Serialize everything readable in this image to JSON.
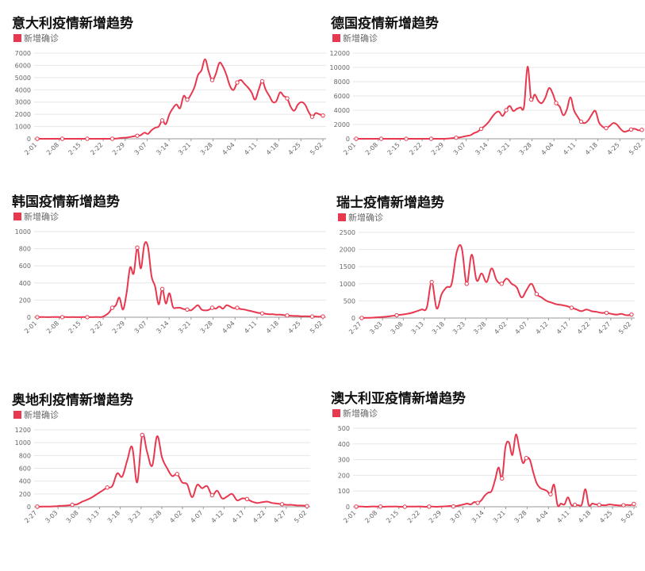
{
  "colors": {
    "line": "#e8384f",
    "grid": "#e6e6e6",
    "tick": "#666666"
  },
  "chart_data": [
    {
      "type": "line",
      "title": "意大利疫情新增趋势",
      "legend": "新增确诊",
      "ylim": [
        0,
        7000
      ],
      "yticks": [
        0,
        1000,
        2000,
        3000,
        4000,
        5000,
        6000,
        7000
      ],
      "xticks": [
        "2-01",
        "2-08",
        "2-15",
        "2-22",
        "2-29",
        "3-07",
        "3-14",
        "3-21",
        "3-28",
        "4-04",
        "4-11",
        "4-18",
        "4-25",
        "5-02"
      ],
      "series": [
        {
          "name": "新增确诊",
          "values": [
            0,
            0,
            0,
            0,
            0,
            0,
            0,
            0,
            0,
            0,
            0,
            0,
            0,
            0,
            0,
            0,
            0,
            0,
            0,
            0,
            0,
            0,
            10,
            50,
            80,
            100,
            150,
            200,
            250,
            300,
            500,
            400,
            700,
            900,
            1000,
            1500,
            1200,
            2000,
            2500,
            2800,
            2500,
            3500,
            3200,
            3600,
            4200,
            5200,
            5600,
            6500,
            5500,
            4800,
            5300,
            6200,
            5900,
            5200,
            4300,
            4000,
            4600,
            4800,
            4500,
            4200,
            3800,
            3200,
            4000,
            4700,
            4000,
            3500,
            3000,
            3100,
            3800,
            3500,
            3300,
            2600,
            2300,
            2800,
            3000,
            2800,
            2200,
            1800,
            2100,
            2000,
            1900
          ]
        }
      ]
    },
    {
      "type": "line",
      "title": "德国疫情新增趋势",
      "legend": "新增确诊",
      "ylim": [
        0,
        12000
      ],
      "yticks": [
        0,
        2000,
        4000,
        6000,
        8000,
        10000,
        12000
      ],
      "xticks": [
        "2-01",
        "2-08",
        "2-15",
        "2-22",
        "2-29",
        "3-07",
        "3-14",
        "3-21",
        "3-28",
        "4-04",
        "4-11",
        "4-18",
        "4-25",
        "5-02"
      ],
      "series": [
        {
          "name": "新增确诊",
          "values": [
            0,
            0,
            0,
            0,
            0,
            0,
            0,
            0,
            0,
            0,
            0,
            0,
            0,
            0,
            0,
            0,
            0,
            0,
            0,
            0,
            0,
            0,
            0,
            0,
            0,
            0,
            50,
            100,
            150,
            200,
            300,
            400,
            500,
            800,
            1000,
            1400,
            1800,
            2300,
            3000,
            3600,
            3800,
            3200,
            4000,
            4600,
            3900,
            4200,
            4400,
            4500,
            10100,
            5500,
            6200,
            5300,
            5000,
            5800,
            7100,
            6400,
            5000,
            4500,
            3300,
            4100,
            5800,
            4000,
            3100,
            2400,
            2200,
            2600,
            3400,
            3900,
            2300,
            1700,
            1500,
            1800,
            2200,
            2000,
            1400,
            1000,
            1100,
            1300,
            1400,
            1200,
            1250
          ]
        }
      ]
    },
    {
      "type": "line",
      "title": "韩国疫情新增趋势",
      "legend": "新增确诊",
      "ylim": [
        0,
        1000
      ],
      "yticks": [
        0,
        200,
        400,
        600,
        800,
        1000
      ],
      "xticks": [
        "2-01",
        "2-08",
        "2-15",
        "2-22",
        "2-29",
        "3-07",
        "3-14",
        "3-21",
        "3-28",
        "4-04",
        "4-11",
        "4-18",
        "4-25",
        "5-02"
      ],
      "series": [
        {
          "name": "新增确诊",
          "values": [
            1,
            3,
            2,
            1,
            2,
            3,
            2,
            1,
            2,
            1,
            2,
            1,
            1,
            2,
            1,
            1,
            2,
            3,
            2,
            20,
            50,
            110,
            140,
            230,
            90,
            280,
            580,
            510,
            813,
            570,
            850,
            820,
            480,
            360,
            150,
            330,
            160,
            280,
            120,
            110,
            110,
            95,
            90,
            80,
            110,
            140,
            90,
            80,
            85,
            110,
            100,
            125,
            100,
            140,
            125,
            105,
            110,
            95,
            90,
            80,
            70,
            60,
            50,
            45,
            40,
            35,
            35,
            30,
            30,
            25,
            20,
            18,
            15,
            15,
            10,
            12,
            10,
            8,
            8,
            6,
            9
          ]
        }
      ]
    },
    {
      "type": "line",
      "title": "瑞士疫情新增趋势",
      "legend": "新增确诊",
      "ylim": [
        0,
        2500
      ],
      "yticks": [
        0,
        500,
        1000,
        1500,
        2000,
        2500
      ],
      "xticks": [
        "2-27",
        "3-03",
        "3-08",
        "3-13",
        "3-18",
        "3-23",
        "3-28",
        "4-02",
        "4-07",
        "4-12",
        "4-17",
        "4-22",
        "4-27",
        "5-02"
      ],
      "series": [
        {
          "name": "新增确诊",
          "values": [
            1,
            5,
            10,
            20,
            30,
            40,
            60,
            80,
            100,
            120,
            150,
            200,
            250,
            300,
            1050,
            280,
            700,
            900,
            1000,
            1920,
            2050,
            1000,
            1850,
            1100,
            1300,
            1050,
            1450,
            1100,
            1000,
            1150,
            1000,
            900,
            600,
            820,
            1000,
            700,
            600,
            500,
            450,
            400,
            380,
            350,
            300,
            250,
            200,
            250,
            200,
            180,
            150,
            150,
            120,
            100,
            120,
            80,
            100
          ]
        }
      ]
    },
    {
      "type": "line",
      "title": "奥地利疫情新增趋势",
      "legend": "新增确诊",
      "ylim": [
        0,
        1200
      ],
      "yticks": [
        0,
        200,
        400,
        600,
        800,
        1000,
        1200
      ],
      "xticks": [
        "2-27",
        "3-03",
        "3-08",
        "3-13",
        "3-18",
        "3-23",
        "3-28",
        "4-02",
        "4-07",
        "4-12",
        "4-17",
        "4-22",
        "4-27",
        "5-02"
      ],
      "series": [
        {
          "name": "新增确诊",
          "values": [
            2,
            2,
            3,
            5,
            10,
            15,
            20,
            30,
            40,
            80,
            110,
            150,
            200,
            250,
            300,
            320,
            520,
            470,
            720,
            930,
            380,
            1120,
            850,
            640,
            1100,
            760,
            600,
            480,
            510,
            380,
            350,
            150,
            340,
            290,
            320,
            180,
            250,
            130,
            160,
            200,
            100,
            130,
            120,
            80,
            60,
            70,
            80,
            60,
            50,
            40,
            30,
            30,
            20,
            20,
            10
          ]
        }
      ]
    },
    {
      "type": "line",
      "title": "澳大利亚疫情新增趋势",
      "legend": "新增确诊",
      "ylim": [
        0,
        500
      ],
      "yticks": [
        0,
        100,
        200,
        300,
        400,
        500
      ],
      "xticks": [
        "2-01",
        "2-08",
        "2-15",
        "2-22",
        "2-29",
        "3-07",
        "3-14",
        "3-21",
        "3-28",
        "4-04",
        "4-11",
        "4-18",
        "4-25",
        "5-02"
      ],
      "series": [
        {
          "name": "新增确诊",
          "values": [
            1,
            2,
            1,
            0,
            1,
            2,
            1,
            1,
            0,
            1,
            1,
            2,
            1,
            0,
            0,
            1,
            1,
            1,
            2,
            1,
            0,
            1,
            1,
            0,
            1,
            2,
            3,
            5,
            2,
            5,
            10,
            15,
            20,
            15,
            30,
            25,
            40,
            70,
            90,
            100,
            170,
            250,
            180,
            380,
            410,
            330,
            460,
            370,
            280,
            310,
            300,
            220,
            150,
            120,
            110,
            100,
            80,
            140,
            10,
            20,
            15,
            60,
            10,
            12,
            10,
            15,
            112,
            10,
            20,
            15,
            12,
            10,
            10,
            15,
            12,
            10,
            8,
            10,
            12,
            10,
            18
          ]
        }
      ]
    }
  ]
}
